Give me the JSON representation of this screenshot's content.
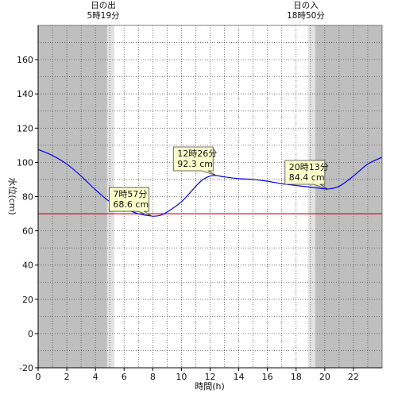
{
  "chart_data": {
    "type": "line",
    "title": "",
    "xlabel": "時間(h)",
    "ylabel": "水位(cm)",
    "xlim": [
      0,
      24
    ],
    "ylim": [
      -20,
      180
    ],
    "xticks": [
      0,
      2,
      4,
      6,
      8,
      10,
      12,
      14,
      16,
      18,
      20,
      22
    ],
    "yticks": [
      -20,
      0,
      20,
      40,
      60,
      80,
      100,
      120,
      140,
      160
    ],
    "grid": true,
    "sunrise": {
      "label": "日の出",
      "time": "5時19分",
      "hour": 5.317
    },
    "sunset": {
      "label": "日の入",
      "time": "18時50分",
      "hour": 18.833
    },
    "reference_line": {
      "value": 70,
      "color": "#e00000"
    },
    "series": [
      {
        "color": "#0000ee",
        "x": [
          0,
          1,
          2,
          3,
          4,
          5,
          6,
          7,
          7.95,
          8.5,
          9,
          10,
          11,
          11.5,
          12,
          12.43,
          13,
          14,
          15,
          16,
          17,
          18,
          19,
          20,
          20.22,
          21,
          22,
          23,
          24
        ],
        "y": [
          107.5,
          104,
          99,
          92,
          84,
          77,
          73,
          70,
          68.6,
          69,
          71,
          77,
          86,
          90,
          92,
          92.3,
          91.5,
          90.5,
          90,
          89,
          87.5,
          86.5,
          85.5,
          84.5,
          84.4,
          86,
          92,
          99,
          103
        ]
      }
    ],
    "annotations": [
      {
        "time": "7時57分",
        "value": "68.6 cm",
        "x": 7.95,
        "y": 68.6
      },
      {
        "time": "12時26分",
        "value": "92.3 cm",
        "x": 12.43,
        "y": 92.3
      },
      {
        "time": "20時13分",
        "value": "84.4 cm",
        "x": 20.22,
        "y": 84.4
      }
    ],
    "colors": {
      "night": "#bfbfbf",
      "twilight": "#e2e2e2",
      "day": "#ffffff",
      "grid": "#555555"
    }
  }
}
